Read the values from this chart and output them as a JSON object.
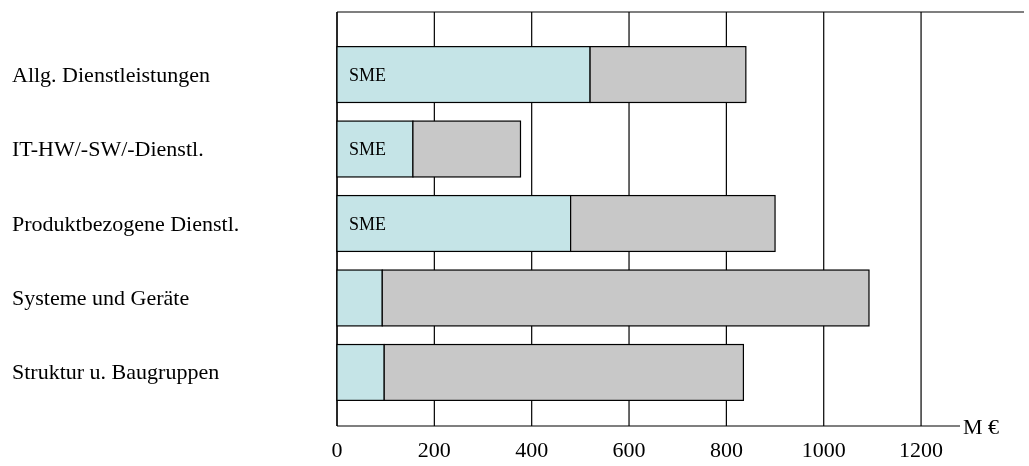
{
  "chart_data": {
    "type": "bar",
    "orientation": "horizontal",
    "stacked": true,
    "xlabel": "M €",
    "categories": [
      "Allg. Dienstleistungen",
      "IT-HW/-SW/-Dienstl.",
      "Produktbezogene Dienstl.",
      "Systeme und Geräte",
      "Struktur u. Baugruppen"
    ],
    "series": [
      {
        "color": "#c5e4e7",
        "values": [
          520,
          156,
          480,
          93,
          97
        ]
      },
      {
        "color": "#c8c8c8",
        "values": [
          320,
          221,
          420,
          1000,
          738
        ]
      }
    ],
    "xlim": [
      0,
      1280
    ],
    "xticks": [
      0,
      200,
      400,
      600,
      800,
      1000,
      1200
    ],
    "grid": "x",
    "annotations": [
      {
        "text": "SME",
        "y": "Allg. Dienstleistungen"
      },
      {
        "text": "SME",
        "y": "IT-HW/-SW/-Dienstl."
      },
      {
        "text": "SME",
        "y": "Produktbezogene Dienstl."
      }
    ]
  }
}
